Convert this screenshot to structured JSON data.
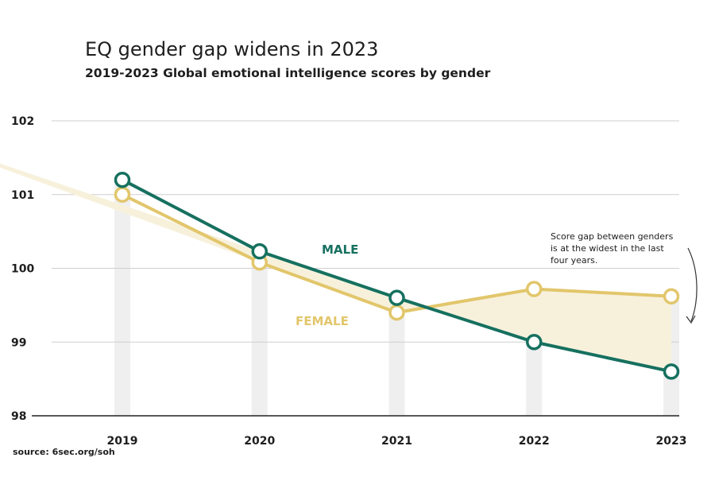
{
  "chart_data": {
    "type": "line",
    "title": "EQ gender gap widens in 2023",
    "subtitle": "2019-2023 Global emotional intelligence scores by gender",
    "categories": [
      "2019",
      "2020",
      "2021",
      "2022",
      "2023"
    ],
    "series": [
      {
        "name": "MALE",
        "values": [
          101.2,
          100.23,
          99.6,
          99.0,
          98.6
        ],
        "color": "#16705f"
      },
      {
        "name": "FEMALE",
        "values": [
          101.0,
          100.08,
          99.4,
          99.72,
          99.62
        ],
        "color": "#e2c66b"
      }
    ],
    "ylim": [
      98,
      102
    ],
    "yticks": [
      98,
      99,
      100,
      101,
      102
    ],
    "annotation": {
      "lines": [
        "Score gap between genders",
        "is at the widest in the last",
        "four years."
      ]
    },
    "source": "source: 6sec.org/soh",
    "colors": {
      "gap_fill": "#f7f1dc",
      "column": "#efefef",
      "grid": "#cfcfcf",
      "axis": "#222222"
    }
  }
}
